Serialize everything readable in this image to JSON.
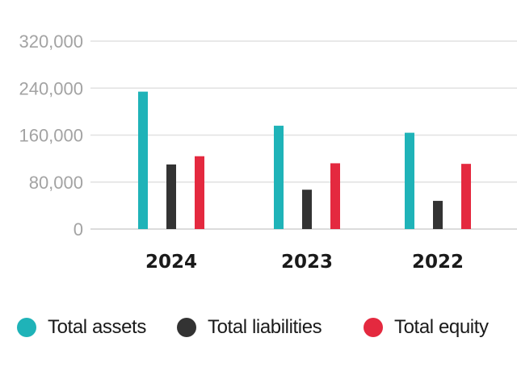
{
  "chart_data": {
    "type": "bar",
    "categories": [
      "2024",
      "2023",
      "2022"
    ],
    "series": [
      {
        "name": "Total assets",
        "color": "#1fb3b8",
        "values": [
          234000,
          176000,
          164000
        ]
      },
      {
        "name": "Total liabilities",
        "color": "#333333",
        "values": [
          110000,
          67000,
          48000
        ]
      },
      {
        "name": "Total equity",
        "color": "#e4293f",
        "values": [
          124000,
          112000,
          111000
        ]
      }
    ],
    "yticks": [
      "0",
      "80,000",
      "160,000",
      "240,000",
      "320,000"
    ],
    "ytick_values": [
      0,
      80000,
      160000,
      240000,
      320000
    ],
    "ylim": [
      0,
      320000
    ],
    "grid": true,
    "legend_position": "bottom"
  }
}
